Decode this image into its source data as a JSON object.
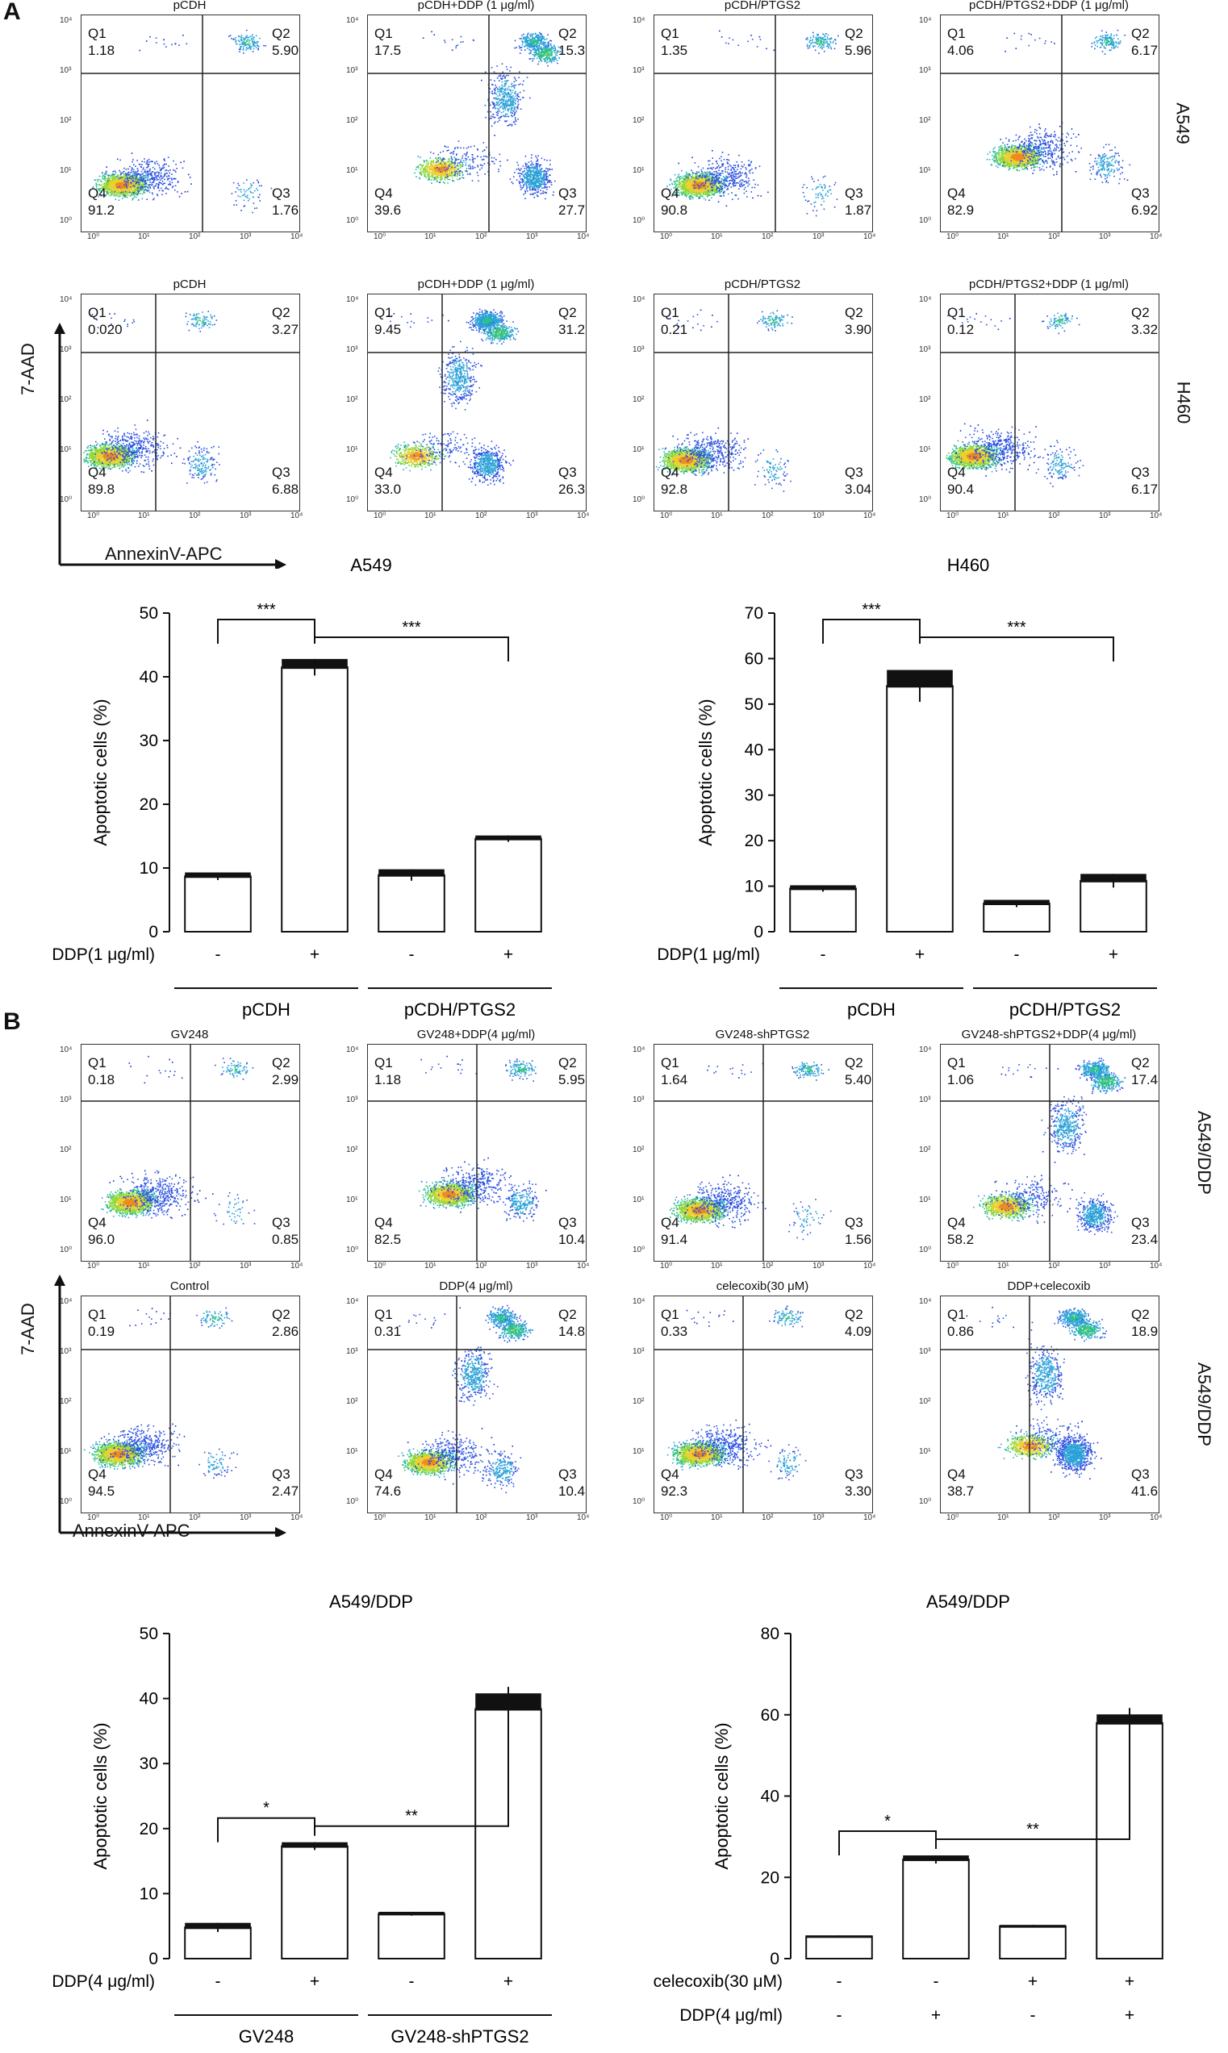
{
  "panels": {
    "A": {
      "letter": "A",
      "flow_rows": [
        {
          "row_label": "A549",
          "plots": [
            {
              "title": "pCDH",
              "q1_name": "Q1",
              "q1": "1.18",
              "q2_name": "Q2",
              "q2": "5.90",
              "q3_name": "Q3",
              "q3": "1.76",
              "q4_name": "Q4",
              "q4": "91.2"
            },
            {
              "title": "pCDH+DDP (1 μg/ml)",
              "q1_name": "Q1",
              "q1": "17.5",
              "q2_name": "Q2",
              "q2": "15.3",
              "q3_name": "Q3",
              "q3": "27.7",
              "q4_name": "Q4",
              "q4": "39.6"
            },
            {
              "title": "pCDH/PTGS2",
              "q1_name": "Q1",
              "q1": "1.35",
              "q2_name": "Q2",
              "q2": "5.96",
              "q3_name": "Q3",
              "q3": "1.87",
              "q4_name": "Q4",
              "q4": "90.8"
            },
            {
              "title": "pCDH/PTGS2+DDP (1 μg/ml)",
              "q1_name": "Q1",
              "q1": "4.06",
              "q2_name": "Q2",
              "q2": "6.17",
              "q3_name": "Q3",
              "q3": "6.92",
              "q4_name": "Q4",
              "q4": "82.9"
            }
          ]
        },
        {
          "row_label": "H460",
          "plots": [
            {
              "title": "pCDH",
              "q1_name": "Q1",
              "q1": "0.020",
              "q2_name": "Q2",
              "q2": "3.27",
              "q3_name": "Q3",
              "q3": "6.88",
              "q4_name": "Q4",
              "q4": "89.8"
            },
            {
              "title": "pCDH+DDP (1 μg/ml)",
              "q1_name": "Q1",
              "q1": "9.45",
              "q2_name": "Q2",
              "q2": "31.2",
              "q3_name": "Q3",
              "q3": "26.3",
              "q4_name": "Q4",
              "q4": "33.0"
            },
            {
              "title": "pCDH/PTGS2",
              "q1_name": "Q1",
              "q1": "0.21",
              "q2_name": "Q2",
              "q2": "3.90",
              "q3_name": "Q3",
              "q3": "3.04",
              "q4_name": "Q4",
              "q4": "92.8"
            },
            {
              "title": "pCDH/PTGS2+DDP (1 μg/ml)",
              "q1_name": "Q1",
              "q1": "0.12",
              "q2_name": "Q2",
              "q2": "3.32",
              "q3_name": "Q3",
              "q3": "6.17",
              "q4_name": "Q4",
              "q4": "90.4"
            }
          ]
        }
      ],
      "y_axis_label": "7-AAD",
      "x_axis_label": "AnnexinV-APC"
    },
    "B": {
      "letter": "B",
      "flow_rows": [
        {
          "row_label": "A549/DDP",
          "plots": [
            {
              "title": "GV248",
              "q1_name": "Q1",
              "q1": "0.18",
              "q2_name": "Q2",
              "q2": "2.99",
              "q3_name": "Q3",
              "q3": "0.85",
              "q4_name": "Q4",
              "q4": "96.0"
            },
            {
              "title": "GV248+DDP(4 μg/ml)",
              "q1_name": "Q1",
              "q1": "1.18",
              "q2_name": "Q2",
              "q2": "5.95",
              "q3_name": "Q3",
              "q3": "10.4",
              "q4_name": "Q4",
              "q4": "82.5"
            },
            {
              "title": "GV248-shPTGS2",
              "q1_name": "Q1",
              "q1": "1.64",
              "q2_name": "Q2",
              "q2": "5.40",
              "q3_name": "Q3",
              "q3": "1.56",
              "q4_name": "Q4",
              "q4": "91.4"
            },
            {
              "title": "GV248-shPTGS2+DDP(4 μg/ml)",
              "q1_name": "Q1",
              "q1": "1.06",
              "q2_name": "Q2",
              "q2": "17.4",
              "q3_name": "Q3",
              "q3": "23.4",
              "q4_name": "Q4",
              "q4": "58.2"
            }
          ]
        },
        {
          "row_label": "A549/DDP",
          "plots": [
            {
              "title": "Control",
              "q1_name": "Q1",
              "q1": "0.19",
              "q2_name": "Q2",
              "q2": "2.86",
              "q3_name": "Q3",
              "q3": "2.47",
              "q4_name": "Q4",
              "q4": "94.5"
            },
            {
              "title": "DDP(4 μg/ml)",
              "q1_name": "Q1",
              "q1": "0.31",
              "q2_name": "Q2",
              "q2": "14.8",
              "q3_name": "Q3",
              "q3": "10.4",
              "q4_name": "Q4",
              "q4": "74.6"
            },
            {
              "title": "celecoxib(30 μM)",
              "q1_name": "Q1",
              "q1": "0.33",
              "q2_name": "Q2",
              "q2": "4.09",
              "q3_name": "Q3",
              "q3": "3.30",
              "q4_name": "Q4",
              "q4": "92.3"
            },
            {
              "title": "DDP+celecoxib",
              "q1_name": "Q1",
              "q1": "0.86",
              "q2_name": "Q2",
              "q2": "18.9",
              "q3_name": "Q3",
              "q3": "41.6",
              "q4_name": "Q4",
              "q4": "38.7"
            }
          ]
        }
      ],
      "y_axis_label": "7-AAD",
      "x_axis_label": "AnnexinV-APC"
    }
  },
  "flow_ticks": {
    "x": [
      "10⁰",
      "10¹",
      "10²",
      "10³",
      "10⁴"
    ],
    "y": [
      "10⁴",
      "10³",
      "10²",
      "10¹",
      "10⁰"
    ]
  },
  "chart_data": [
    {
      "type": "bar",
      "title": "A549",
      "ylabel": "Apoptotic cells (%)",
      "ylim": [
        0,
        50
      ],
      "yticks": [
        0,
        10,
        20,
        30,
        40,
        50
      ],
      "values": [
        8.7,
        41.5,
        8.9,
        14.6
      ],
      "errors": [
        0.6,
        1.3,
        0.9,
        0.5
      ],
      "treatment_rows": [
        {
          "label": "DDP(1 μg/ml)",
          "marks": [
            "-",
            "+",
            "-",
            "+"
          ]
        }
      ],
      "groups": [
        {
          "label": "pCDH"
        },
        {
          "label": "pCDH/PTGS2"
        }
      ],
      "significance": [
        {
          "from": 0,
          "to": 1,
          "label": "***"
        },
        {
          "from": 1,
          "to": 3,
          "label": "***"
        }
      ]
    },
    {
      "type": "bar",
      "title": "H460",
      "ylabel": "Apoptotic cells (%)",
      "ylim": [
        0,
        70
      ],
      "yticks": [
        0,
        10,
        20,
        30,
        40,
        50,
        60,
        70
      ],
      "values": [
        9.5,
        54.0,
        6.2,
        11.2
      ],
      "errors": [
        0.7,
        3.5,
        0.8,
        1.5
      ],
      "treatment_rows": [
        {
          "label": "DDP(1 μg/ml)",
          "marks": [
            "-",
            "+",
            "-",
            "+"
          ]
        }
      ],
      "groups": [
        {
          "label": "pCDH"
        },
        {
          "label": "pCDH/PTGS2"
        }
      ],
      "significance": [
        {
          "from": 0,
          "to": 1,
          "label": "***"
        },
        {
          "from": 1,
          "to": 3,
          "label": "***"
        }
      ]
    },
    {
      "type": "bar",
      "title": "A549/DDP",
      "ylabel": "Apoptotic cells (%)",
      "ylim": [
        0,
        50
      ],
      "yticks": [
        0,
        10,
        20,
        30,
        40,
        50
      ],
      "values": [
        4.8,
        17.3,
        6.9,
        38.4
      ],
      "errors": [
        0.7,
        0.6,
        0.3,
        2.4
      ],
      "treatment_rows": [
        {
          "label": "DDP(4 μg/ml)",
          "marks": [
            "-",
            "+",
            "-",
            "+"
          ]
        }
      ],
      "groups": [
        {
          "label": "GV248"
        },
        {
          "label": "GV248-shPTGS2"
        }
      ],
      "significance": [
        {
          "from": 0,
          "to": 1,
          "label": "*"
        },
        {
          "from": 1,
          "to": 3,
          "label": "**"
        }
      ]
    },
    {
      "type": "bar",
      "title": "A549/DDP",
      "ylabel": "Apoptotic cells (%)",
      "ylim": [
        0,
        80
      ],
      "yticks": [
        0,
        20,
        40,
        60,
        80
      ],
      "values": [
        5.5,
        24.4,
        8.0,
        58.0
      ],
      "errors": [
        0.2,
        1.0,
        0.3,
        2.1
      ],
      "treatment_rows": [
        {
          "label": "celecoxib(30 μM)",
          "marks": [
            "-",
            "-",
            "+",
            "+"
          ]
        },
        {
          "label": "DDP(4 μg/ml)",
          "marks": [
            "-",
            "+",
            "-",
            "+"
          ]
        }
      ],
      "groups": [],
      "significance": [
        {
          "from": 0,
          "to": 1,
          "label": "*"
        },
        {
          "from": 1,
          "to": 3,
          "label": "**"
        }
      ]
    }
  ]
}
